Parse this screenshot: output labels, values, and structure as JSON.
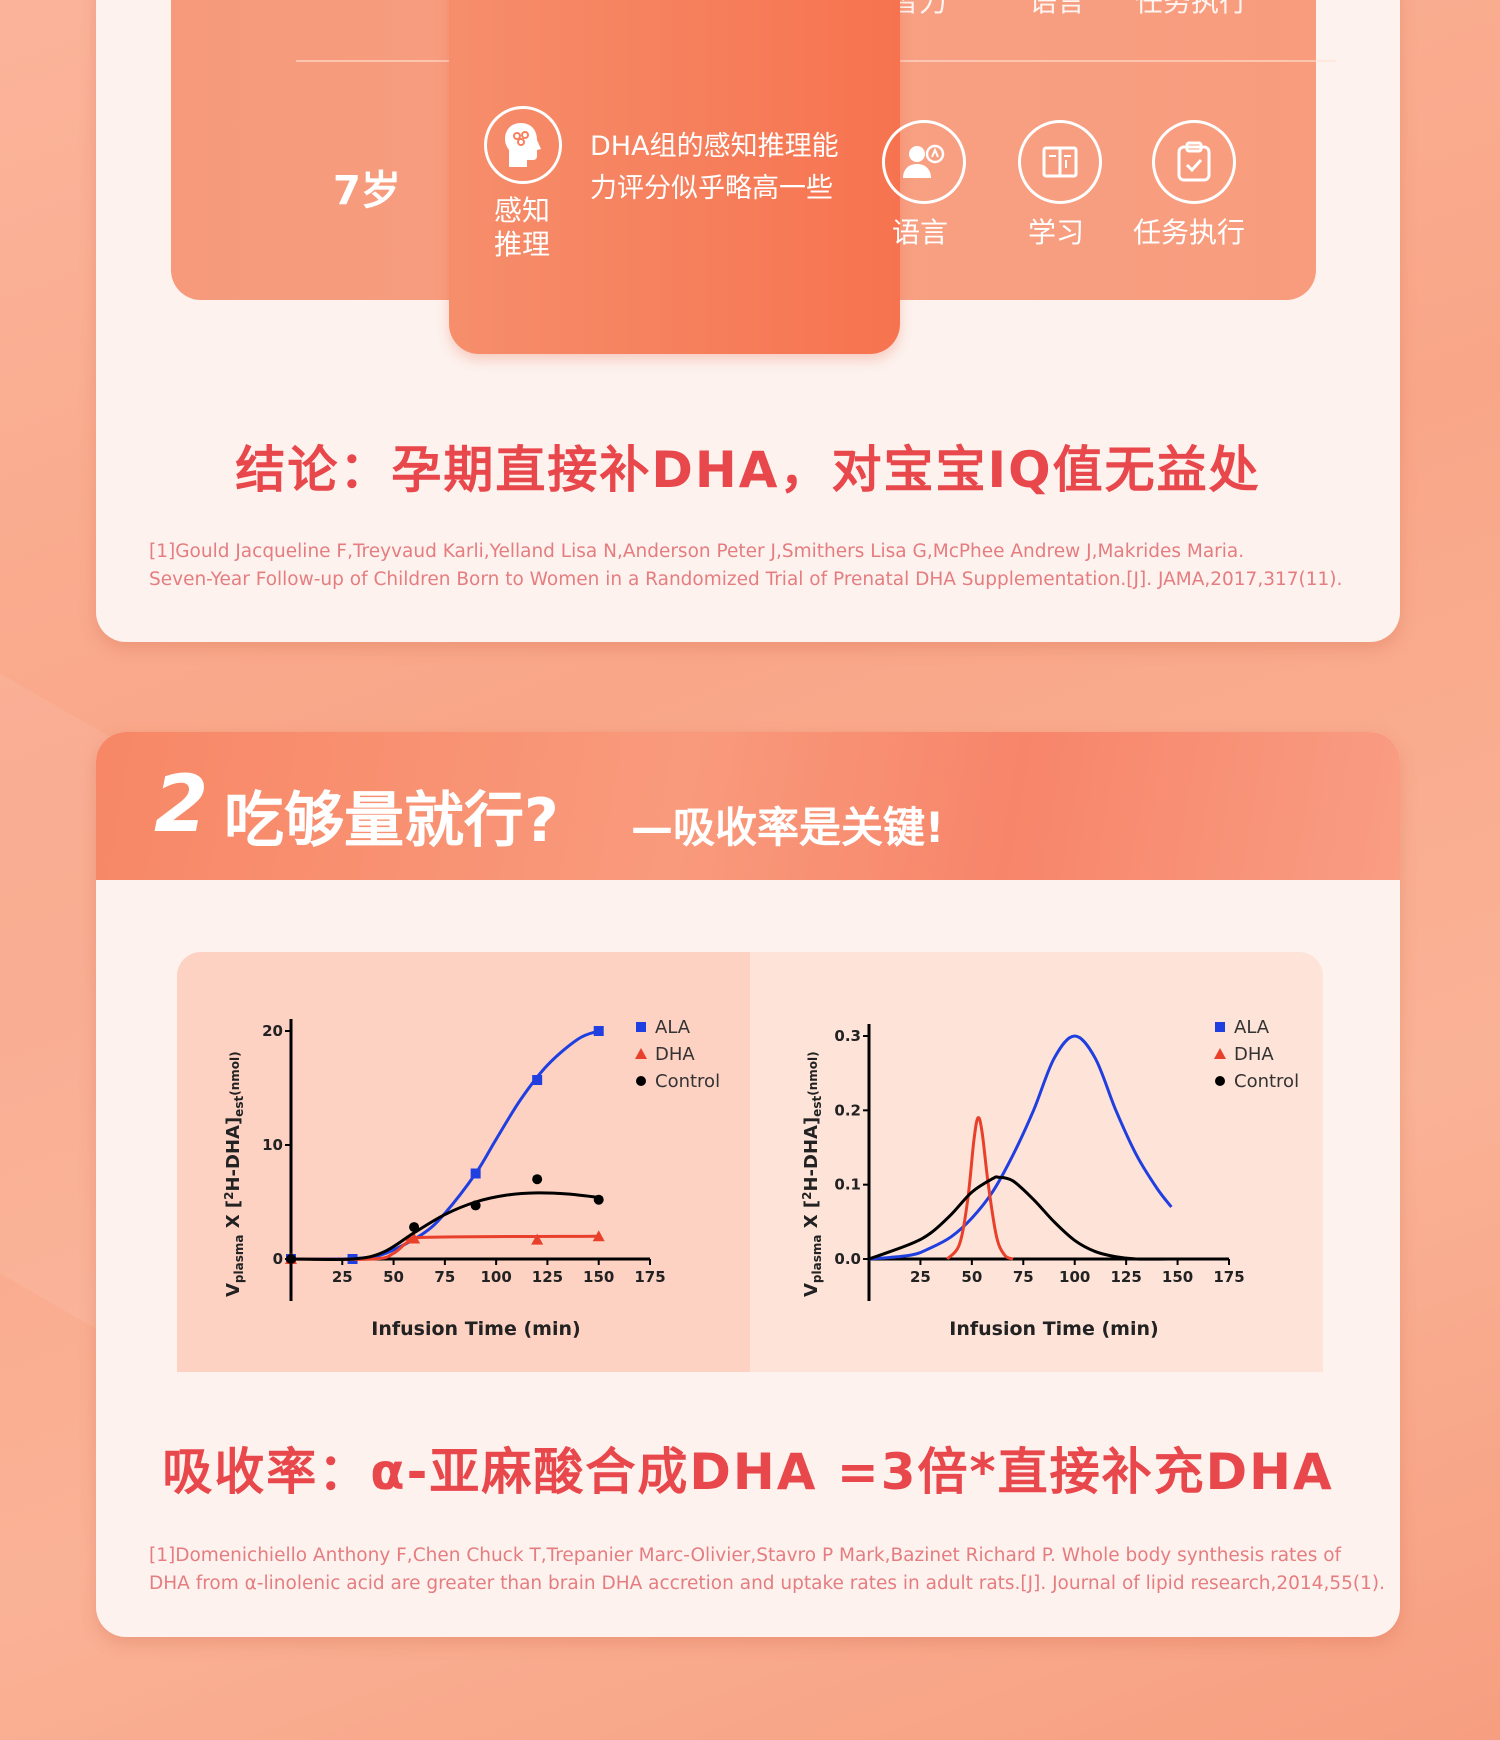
{
  "top_section": {
    "header_labels": [
      "智力",
      "语言",
      "任务执行"
    ],
    "row": {
      "age": "7岁",
      "highlight": {
        "icon": "head-brain-icon",
        "label": "感知推理",
        "description": "DHA组的感知推理能力评分似乎略高一些"
      },
      "items": [
        {
          "icon": "people-speech-icon",
          "label": "语言"
        },
        {
          "icon": "book-icon",
          "label": "学习"
        },
        {
          "icon": "clipboard-check-icon",
          "label": "任务执行"
        }
      ]
    },
    "conclusion": "结论：孕期直接补DHA，对宝宝IQ值无益处",
    "citation": [
      "[1]Gould Jacqueline F,Treyvaud Karli,Yelland Lisa N,Anderson Peter J,Smithers Lisa G,McPhee Andrew J,Makrides Maria.",
      "Seven-Year Follow-up of Children Born to Women in a Randomized Trial of Prenatal DHA Supplementation.[J]. JAMA,2017,317(11)."
    ]
  },
  "section2": {
    "number": "2",
    "title": "吃够量就行?",
    "subtitle": "—吸收率是关键!",
    "conclusion": "吸收率：α-亚麻酸合成DHA =3倍*直接补充DHA",
    "citation": [
      "[1]Domenichiello Anthony F,Chen Chuck T,Trepanier Marc-Olivier,Stavro P Mark,Bazinet Richard P. Whole body synthesis rates of",
      "DHA from α-linolenic acid are greater than brain DHA accretion and uptake rates in adult rats.[J]. Journal of lipid research,2014,55(1)."
    ]
  },
  "colors": {
    "accent": "#e8474b",
    "ALA": "#1f3fe0",
    "DHA": "#e8402a",
    "Control": "#000000",
    "panel": "#f7734f"
  },
  "chart_data": [
    {
      "type": "scatter",
      "xlabel": "Infusion Time  (min)",
      "ylabel": {
        "main": "V",
        "sub1": "plasma",
        "mid": " X [",
        "sup": "2",
        "mid2": "H-DHA]",
        "sub2": "est",
        "unit": "(nmol)"
      },
      "xlim": [
        0,
        175
      ],
      "ylim": [
        -5,
        26
      ],
      "xticks": [
        25,
        50,
        75,
        100,
        125,
        150,
        175
      ],
      "yticks": [
        0,
        10,
        20
      ],
      "legend": "top-right",
      "grid": false,
      "series": [
        {
          "name": "ALA",
          "marker": "square",
          "points": [
            [
              0,
              0
            ],
            [
              30,
              0
            ],
            [
              90,
              7.5
            ],
            [
              120,
              15.7
            ],
            [
              150,
              20
            ]
          ],
          "fit": [
            [
              0,
              0
            ],
            [
              25,
              0
            ],
            [
              40,
              0.2
            ],
            [
              50,
              0.8
            ],
            [
              65,
              2.3
            ],
            [
              75,
              4
            ],
            [
              90,
              7.5
            ],
            [
              100,
              10.5
            ],
            [
              112,
              14
            ],
            [
              125,
              17
            ],
            [
              140,
              19.3
            ],
            [
              150,
              20
            ]
          ]
        },
        {
          "name": "DHA",
          "marker": "triangle",
          "points": [
            [
              0,
              0
            ],
            [
              60,
              1.8
            ],
            [
              120,
              1.7
            ],
            [
              150,
              2.0
            ]
          ],
          "fit": [
            [
              0,
              0
            ],
            [
              40,
              0
            ],
            [
              50,
              0.5
            ],
            [
              57,
              1.5
            ],
            [
              65,
              1.9
            ],
            [
              150,
              2.0
            ]
          ]
        },
        {
          "name": "Control",
          "marker": "circle",
          "points": [
            [
              0,
              0
            ],
            [
              60,
              2.8
            ],
            [
              90,
              4.7
            ],
            [
              120,
              7
            ],
            [
              150,
              5.2
            ]
          ],
          "fit": [
            [
              0,
              0
            ],
            [
              30,
              0
            ],
            [
              45,
              0.6
            ],
            [
              60,
              2.3
            ],
            [
              75,
              3.9
            ],
            [
              90,
              5
            ],
            [
              105,
              5.6
            ],
            [
              120,
              5.8
            ],
            [
              135,
              5.7
            ],
            [
              150,
              5.4
            ]
          ]
        }
      ]
    },
    {
      "type": "line",
      "xlabel": "Infusion Time  (min)",
      "ylabel": {
        "main": "V",
        "sub1": "plasma",
        "mid": " X [",
        "sup": "2",
        "mid2": "H-DHA]",
        "sub2": "est",
        "unit": "(nmol)"
      },
      "xlim": [
        0,
        175
      ],
      "ylim": [
        -0.06,
        0.31
      ],
      "xticks": [
        25,
        50,
        75,
        100,
        125,
        150,
        175
      ],
      "yticks": [
        0.0,
        0.1,
        0.2,
        0.3
      ],
      "ytick_labels": [
        "0.0",
        "0.1",
        "0.2",
        "0.3"
      ],
      "legend": "top-right",
      "grid": false,
      "series": [
        {
          "name": "ALA",
          "marker": "square",
          "fit": [
            [
              0,
              0
            ],
            [
              20,
              0.005
            ],
            [
              30,
              0.015
            ],
            [
              40,
              0.03
            ],
            [
              50,
              0.055
            ],
            [
              60,
              0.09
            ],
            [
              70,
              0.14
            ],
            [
              80,
              0.2
            ],
            [
              90,
              0.27
            ],
            [
              100,
              0.3
            ],
            [
              110,
              0.27
            ],
            [
              120,
              0.2
            ],
            [
              130,
              0.14
            ],
            [
              140,
              0.095
            ],
            [
              147,
              0.07
            ]
          ]
        },
        {
          "name": "DHA",
          "marker": "triangle",
          "fit": [
            [
              38,
              0
            ],
            [
              44,
              0.02
            ],
            [
              48,
              0.08
            ],
            [
              51,
              0.16
            ],
            [
              53,
              0.19
            ],
            [
              55,
              0.17
            ],
            [
              58,
              0.1
            ],
            [
              62,
              0.03
            ],
            [
              66,
              0.005
            ],
            [
              70,
              0
            ]
          ]
        },
        {
          "name": "Control",
          "marker": "circle",
          "fit": [
            [
              0,
              0
            ],
            [
              20,
              0.02
            ],
            [
              30,
              0.035
            ],
            [
              40,
              0.06
            ],
            [
              50,
              0.09
            ],
            [
              60,
              0.108
            ],
            [
              63,
              0.11
            ],
            [
              70,
              0.105
            ],
            [
              80,
              0.08
            ],
            [
              90,
              0.05
            ],
            [
              100,
              0.025
            ],
            [
              110,
              0.01
            ],
            [
              120,
              0.003
            ],
            [
              130,
              0
            ],
            [
              150,
              0
            ]
          ]
        }
      ]
    }
  ]
}
